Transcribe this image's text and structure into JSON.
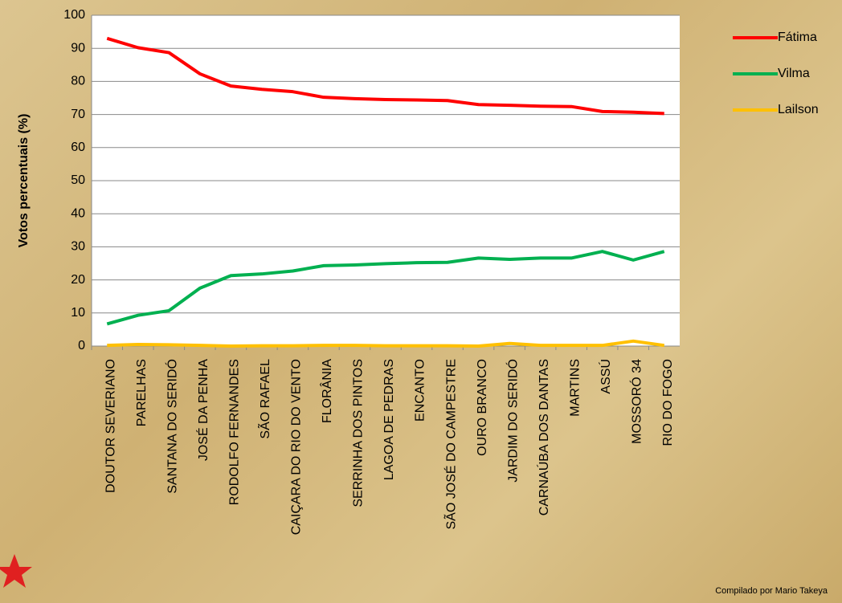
{
  "chart_data": {
    "type": "line",
    "y_label": "Votos percentuais (%)",
    "note": "Compilado por Mario Takeya",
    "categories": [
      "DOUTOR SEVERIANO",
      "PARELHAS",
      "SANTANA DO SERIDÓ",
      "JOSÉ DA PENHA",
      "RODOLFO FERNANDES",
      "SÃO RAFAEL",
      "CAIÇARA DO RIO DO VENTO",
      "FLORÂNIA",
      "SERRINHA DOS PINTOS",
      "LAGOA DE PEDRAS",
      "ENCANTO",
      "SÃO JOSÉ DO CAMPESTRE",
      "OURO BRANCO",
      "JARDIM DO SERIDÓ",
      "CARNAÚBA DOS DANTAS",
      "MARTINS",
      "ASSÚ",
      "MOSSORÓ 34",
      "RIO DO FOGO"
    ],
    "series": [
      {
        "name": "Fátima",
        "color": "#ff0000",
        "values": [
          93,
          90.2,
          88.7,
          82.3,
          78.6,
          77.6,
          76.9,
          75.2,
          74.8,
          74.5,
          74.4,
          74.2,
          73,
          72.8,
          72.5,
          72.4,
          70.9,
          70.7,
          70.3
        ]
      },
      {
        "name": "Vilma",
        "color": "#00b050",
        "values": [
          6.7,
          9.3,
          10.7,
          17.5,
          21.3,
          21.8,
          22.7,
          24.3,
          24.5,
          24.9,
          25.2,
          25.3,
          26.6,
          26.2,
          26.6,
          26.6,
          28.6,
          26,
          28.6
        ]
      },
      {
        "name": "Lailson",
        "color": "#ffc000",
        "values": [
          0.2,
          0.5,
          0.4,
          0.2,
          0,
          0.1,
          0.1,
          0.2,
          0.2,
          0.1,
          0.1,
          0.1,
          0,
          0.8,
          0.2,
          0.2,
          0.2,
          1.5,
          0.2
        ]
      }
    ],
    "ylim": [
      0,
      100
    ],
    "yticks": [
      0,
      10,
      20,
      30,
      40,
      50,
      60,
      70,
      80,
      90,
      100
    ],
    "grid": true,
    "legend": "right"
  }
}
